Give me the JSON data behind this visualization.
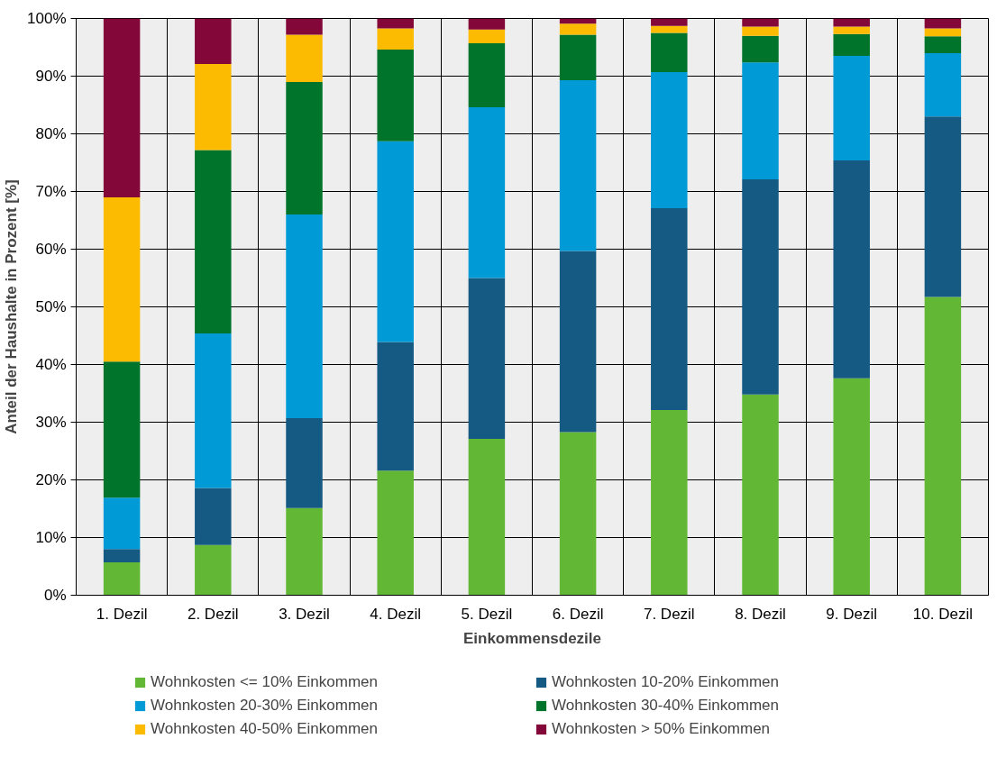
{
  "chart_data": {
    "type": "bar",
    "stacked": true,
    "xlabel": "Einkommensdezile",
    "ylabel": "Anteil der Haushalte in Prozent [%]",
    "categories": [
      "1. Dezil",
      "2. Dezil",
      "3. Dezil",
      "4. Dezil",
      "5. Dezil",
      "6. Dezil",
      "7. Dezil",
      "8. Dezil",
      "9. Dezil",
      "10. Dezil"
    ],
    "series": [
      {
        "name": "Wohnkosten <= 10% Einkommen",
        "color": "#62b834",
        "values": [
          5.7,
          8.7,
          15.1,
          21.6,
          27.1,
          28.3,
          32.1,
          34.8,
          37.6,
          51.7
        ]
      },
      {
        "name": "Wohnkosten 10-20% Einkommen",
        "color": "#155a83",
        "values": [
          2.3,
          9.9,
          15.6,
          22.3,
          27.9,
          31.4,
          35.0,
          37.3,
          37.8,
          31.3
        ]
      },
      {
        "name": "Wohnkosten 20-30% Einkommen",
        "color": "#009ad6",
        "values": [
          8.9,
          26.8,
          35.3,
          34.8,
          29.6,
          29.6,
          23.6,
          20.3,
          18.1,
          11.0
        ]
      },
      {
        "name": "Wohnkosten 30-40% Einkommen",
        "color": "#00742b",
        "values": [
          23.6,
          31.8,
          23.0,
          15.9,
          11.1,
          7.9,
          6.8,
          4.6,
          3.8,
          2.9
        ]
      },
      {
        "name": "Wohnkosten 40-50% Einkommen",
        "color": "#fcbb00",
        "values": [
          28.5,
          14.9,
          8.2,
          3.7,
          2.4,
          1.9,
          1.2,
          1.6,
          1.3,
          1.4
        ]
      },
      {
        "name": "Wohnkosten > 50% Einkommen",
        "color": "#830738",
        "values": [
          31.0,
          7.9,
          2.8,
          1.7,
          1.9,
          0.9,
          1.3,
          1.4,
          1.4,
          1.7
        ]
      }
    ],
    "ylim": [
      0,
      100
    ],
    "yticks": [
      {
        "value": 0,
        "label": "0%"
      },
      {
        "value": 10,
        "label": "10%"
      },
      {
        "value": 20,
        "label": "20%"
      },
      {
        "value": 30,
        "label": "30%"
      },
      {
        "value": 40,
        "label": "40%"
      },
      {
        "value": 50,
        "label": "50%"
      },
      {
        "value": 60,
        "label": "60%"
      },
      {
        "value": 70,
        "label": "70%"
      },
      {
        "value": 80,
        "label": "80%"
      },
      {
        "value": 90,
        "label": "90%"
      },
      {
        "value": 100,
        "label": "100%"
      }
    ],
    "grid": true,
    "legend": "bottom"
  }
}
